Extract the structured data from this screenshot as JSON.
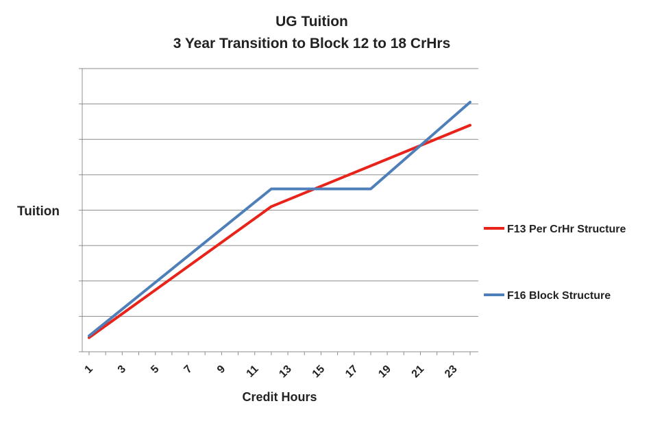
{
  "chart_data": {
    "type": "line",
    "title_line1": "UG Tuition",
    "title_line2": "3 Year Transition to Block 12 to 18 CrHrs",
    "xlabel": "Credit Hours",
    "ylabel": "Tuition",
    "x_tick_labels": [
      "1",
      "3",
      "5",
      "7",
      "9",
      "11",
      "13",
      "15",
      "17",
      "19",
      "21",
      "23"
    ],
    "xlim": [
      1,
      24
    ],
    "ylim": [
      0,
      8
    ],
    "grid": true,
    "legend_position": "right",
    "series": [
      {
        "name": "F13 Per CrHr Structure",
        "color": "#e8231a",
        "x": [
          1,
          12,
          24
        ],
        "y": [
          0.4,
          4.1,
          6.4
        ]
      },
      {
        "name": "F16 Block Structure",
        "color": "#4f7fb8",
        "x": [
          1,
          12,
          18,
          24
        ],
        "y": [
          0.45,
          4.6,
          4.6,
          7.05
        ]
      }
    ]
  }
}
